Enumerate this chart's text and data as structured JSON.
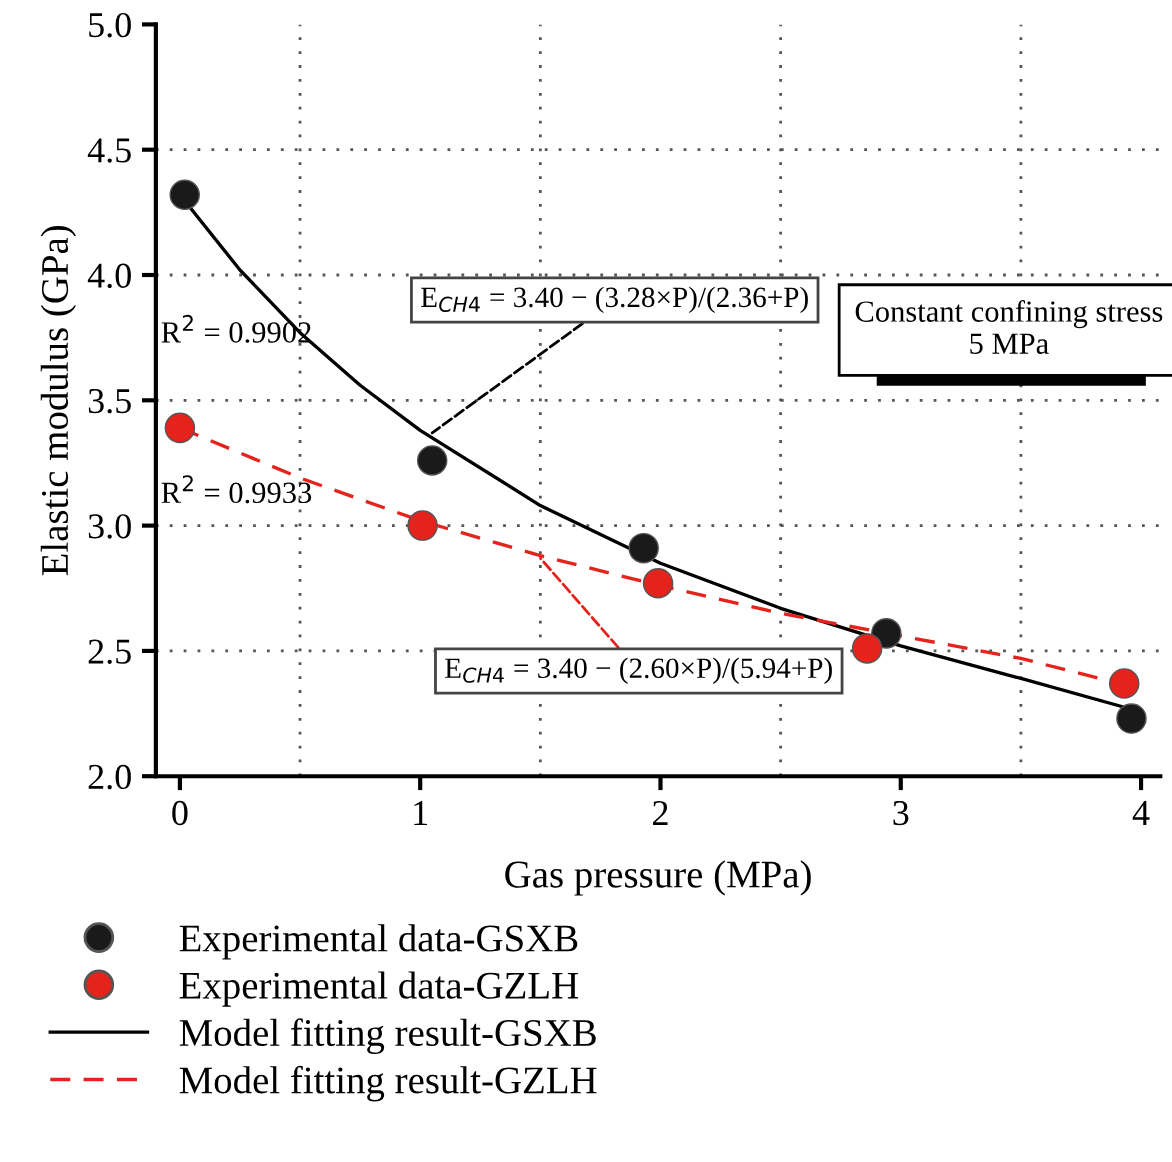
{
  "chart_data": {
    "type": "scatter",
    "xlabel": "Gas pressure (MPa)",
    "ylabel": "Elastic modulus (GPa)",
    "xlim": [
      -0.1,
      4.08
    ],
    "ylim": [
      2.0,
      5.0
    ],
    "xticks": [
      0,
      1,
      2,
      3,
      4
    ],
    "yticks": [
      {
        "value": 2.0,
        "label": "2.0"
      },
      {
        "value": 2.5,
        "label": "2.5"
      },
      {
        "value": 3.0,
        "label": "3.0"
      },
      {
        "value": 3.5,
        "label": "3.5"
      },
      {
        "value": 4.0,
        "label": "4.0"
      },
      {
        "value": 4.5,
        "label": "4.5"
      },
      {
        "value": 5.0,
        "label": "5.0"
      }
    ],
    "series": [
      {
        "name": "Experimental data-GSXB",
        "color": "#1a1a1a",
        "marker": "circle",
        "x": [
          0.02,
          1.05,
          1.93,
          2.94,
          3.96
        ],
        "values": [
          4.32,
          3.26,
          2.91,
          2.57,
          2.23
        ]
      },
      {
        "name": "Experimental data-GZLH",
        "color": "#e3231c",
        "marker": "circle",
        "x": [
          0,
          1.01,
          1.99,
          2.86,
          3.93
        ],
        "values": [
          3.39,
          3.0,
          2.77,
          2.51,
          2.37
        ]
      },
      {
        "name": "Model fitting result-GSXB",
        "type": "line",
        "color": "#000000",
        "line_style": "solid",
        "marker": "none",
        "x": [
          0,
          0.25,
          0.5,
          0.75,
          1,
          1.5,
          2,
          2.5,
          3,
          3.5,
          3.95
        ],
        "values": [
          4.32,
          4.02,
          3.77,
          3.56,
          3.38,
          3.08,
          2.85,
          2.67,
          2.52,
          2.39,
          2.27
        ]
      },
      {
        "name": "Model fitting result-GZLH",
        "type": "line",
        "color": "#e3231c",
        "line_style": "dashed",
        "marker": "none",
        "x": [
          0,
          0.5,
          1,
          1.5,
          2,
          2.5,
          3,
          3.5,
          3.95
        ],
        "values": [
          3.39,
          3.19,
          3.02,
          2.88,
          2.76,
          2.65,
          2.56,
          2.47,
          2.36
        ]
      }
    ],
    "annotations": [
      {
        "text": "E$_{CH4}$ = 3.40 − (3.28×P)/(2.36+P)",
        "x": 1.05,
        "y": 3.37
      },
      {
        "text": "E$_{CH4}$ = 3.40 − (2.60×P)/(5.94+P)",
        "x": 1.5,
        "y": 2.87
      },
      "R$^{2}$ = 0.9902",
      "R$^{2}$ = 0.9933",
      "Constant confining stress\n5 MPa"
    ],
    "ref_lines": [
      {
        "axis": "x",
        "value": 0.5,
        "color": "#555555",
        "line_style": "dotted"
      },
      {
        "axis": "x",
        "value": 1.5,
        "color": "#555555",
        "line_style": "dotted"
      },
      {
        "axis": "x",
        "value": 2.5,
        "color": "#555555",
        "line_style": "dotted"
      },
      {
        "axis": "x",
        "value": 3.5,
        "color": "#555555",
        "line_style": "dotted"
      },
      {
        "axis": "y",
        "value": 2.5,
        "color": "#555555",
        "line_style": "dotted"
      },
      {
        "axis": "y",
        "value": 3.0,
        "color": "#555555",
        "line_style": "dotted"
      },
      {
        "axis": "y",
        "value": 3.5,
        "color": "#555555",
        "line_style": "dotted"
      },
      {
        "axis": "y",
        "value": 4.0,
        "color": "#555555",
        "line_style": "dotted"
      },
      {
        "axis": "y",
        "value": 4.5,
        "color": "#555555",
        "line_style": "dotted"
      }
    ],
    "grid": false,
    "legend": "bottom"
  }
}
